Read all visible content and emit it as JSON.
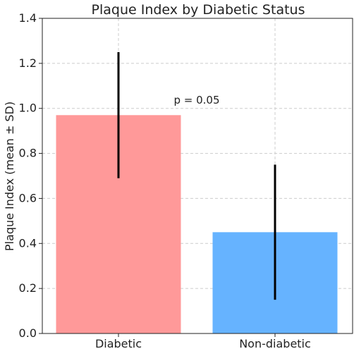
{
  "chart_data": {
    "type": "bar",
    "title": "Plaque Index by Diabetic Status",
    "xlabel": "",
    "ylabel": "Plaque Index (mean ± SD)",
    "categories": [
      "Diabetic",
      "Non-diabetic"
    ],
    "values": [
      0.97,
      0.45
    ],
    "error": [
      0.28,
      0.3
    ],
    "colors": [
      "#ff9999",
      "#66b3ff"
    ],
    "ylim": [
      0,
      1.4
    ],
    "yticks": [
      "0.0",
      "0.2",
      "0.4",
      "0.6",
      "0.8",
      "1.0",
      "1.2",
      "1.4"
    ],
    "grid": true,
    "annotation": "p = 0.05"
  }
}
